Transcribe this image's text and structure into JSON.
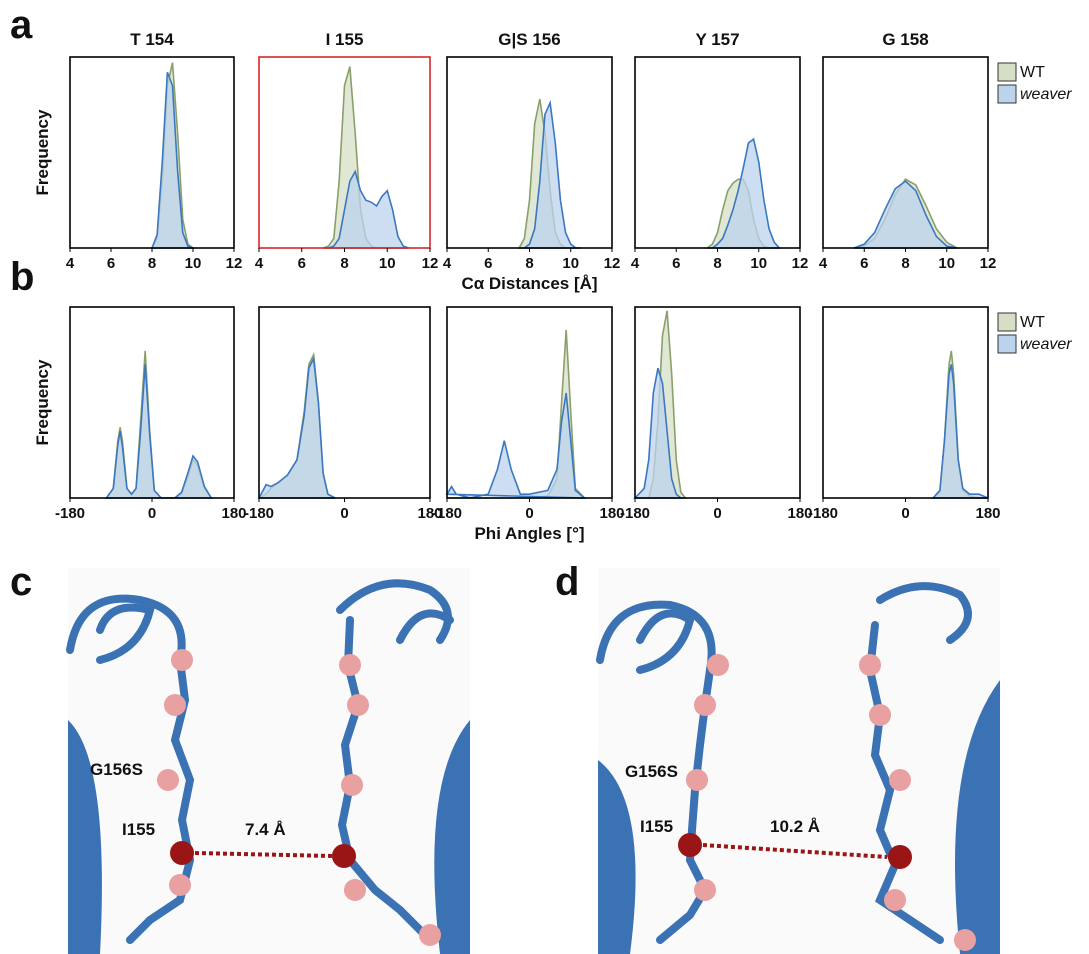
{
  "panel_labels": [
    "a",
    "b",
    "c",
    "d"
  ],
  "structures": [
    {
      "mutant": "G156S",
      "residue": "I155",
      "distance": "7.4 Å"
    },
    {
      "mutant": "G156S",
      "residue": "I155",
      "distance": "10.2 Å"
    }
  ],
  "chart_data": [
    {
      "type": "area",
      "title": "T 154",
      "ylabel": "Frequency",
      "xlim": [
        4,
        12
      ],
      "xticks": [
        4,
        6,
        8,
        10,
        12
      ],
      "ylim": [
        0,
        1
      ],
      "x": [
        8.0,
        8.25,
        8.5,
        8.75,
        9.0,
        9.25,
        9.5,
        9.75,
        10.0
      ],
      "series": [
        {
          "color": "#8aa06a",
          "values": [
            0,
            0.05,
            0.35,
            0.85,
            0.97,
            0.6,
            0.15,
            0.02,
            0
          ]
        },
        {
          "color": "#3b78c0",
          "values": [
            0,
            0.07,
            0.45,
            0.92,
            0.85,
            0.4,
            0.08,
            0.01,
            0
          ]
        }
      ]
    },
    {
      "type": "area",
      "title": "I 155",
      "highlight": "#d62728",
      "xlim": [
        4,
        12
      ],
      "xticks": [
        4,
        6,
        8,
        10,
        12
      ],
      "ylim": [
        0,
        1
      ],
      "x": [
        7,
        7.25,
        7.5,
        7.75,
        8,
        8.25,
        8.5,
        8.75,
        9,
        9.25,
        9.5,
        9.75,
        10,
        10.25,
        10.5,
        10.75,
        11
      ],
      "series": [
        {
          "color": "#8aa06a",
          "values": [
            0,
            0.01,
            0.05,
            0.35,
            0.85,
            0.95,
            0.6,
            0.2,
            0.05,
            0.01,
            0,
            0,
            0,
            0,
            0,
            0,
            0
          ]
        },
        {
          "color": "#3b78c0",
          "values": [
            0,
            0,
            0.01,
            0.05,
            0.2,
            0.35,
            0.4,
            0.3,
            0.25,
            0.24,
            0.22,
            0.27,
            0.3,
            0.2,
            0.06,
            0.01,
            0
          ]
        }
      ]
    },
    {
      "type": "area",
      "title": "G|S 156",
      "xlabel": "Cα Distances [Å]",
      "xlim": [
        4,
        12
      ],
      "xticks": [
        4,
        6,
        8,
        10,
        12
      ],
      "ylim": [
        0,
        1
      ],
      "x": [
        7.5,
        7.75,
        8,
        8.25,
        8.5,
        8.75,
        9,
        9.25,
        9.5,
        9.75,
        10,
        10.25,
        10.5
      ],
      "series": [
        {
          "color": "#8aa06a",
          "values": [
            0,
            0.05,
            0.25,
            0.65,
            0.78,
            0.6,
            0.3,
            0.08,
            0.02,
            0,
            0,
            0,
            0
          ]
        },
        {
          "color": "#3b78c0",
          "values": [
            0,
            0,
            0.02,
            0.1,
            0.35,
            0.7,
            0.76,
            0.55,
            0.25,
            0.08,
            0.02,
            0,
            0
          ]
        }
      ]
    },
    {
      "type": "area",
      "title": "Y 157",
      "xlim": [
        4,
        12
      ],
      "xticks": [
        4,
        6,
        8,
        10,
        12
      ],
      "ylim": [
        0,
        1
      ],
      "x": [
        7.5,
        7.75,
        8,
        8.25,
        8.5,
        8.75,
        9,
        9.25,
        9.5,
        9.75,
        10,
        10.25,
        10.5,
        10.75,
        11
      ],
      "series": [
        {
          "color": "#8aa06a",
          "values": [
            0,
            0.02,
            0.08,
            0.2,
            0.3,
            0.34,
            0.36,
            0.36,
            0.3,
            0.15,
            0.05,
            0.01,
            0,
            0,
            0
          ]
        },
        {
          "color": "#3b78c0",
          "values": [
            0,
            0,
            0.02,
            0.05,
            0.12,
            0.2,
            0.3,
            0.42,
            0.55,
            0.57,
            0.45,
            0.25,
            0.1,
            0.03,
            0
          ]
        }
      ]
    },
    {
      "type": "area",
      "title": "G 158",
      "legend": "right",
      "xlim": [
        4,
        12
      ],
      "xticks": [
        4,
        6,
        8,
        10,
        12
      ],
      "ylim": [
        0,
        1
      ],
      "x": [
        5.5,
        6,
        6.5,
        7,
        7.5,
        8,
        8.5,
        9,
        9.5,
        10,
        10.5
      ],
      "series": [
        {
          "name": "WT",
          "color": "#8aa06a",
          "values": [
            0,
            0.01,
            0.05,
            0.15,
            0.28,
            0.36,
            0.33,
            0.22,
            0.1,
            0.03,
            0
          ]
        },
        {
          "name": "weaver",
          "color": "#3b78c0",
          "values": [
            0,
            0.02,
            0.08,
            0.2,
            0.31,
            0.35,
            0.3,
            0.17,
            0.06,
            0.01,
            0
          ]
        }
      ]
    },
    {
      "type": "area",
      "ylabel": "Frequency",
      "xlim": [
        -180,
        180
      ],
      "xticks": [
        -180,
        0,
        180
      ],
      "ylim": [
        0,
        1
      ],
      "x": [
        -100,
        -85,
        -75,
        -70,
        -65,
        -55,
        -45,
        -35,
        -25,
        -15,
        -5,
        5,
        20,
        50,
        65,
        80,
        90,
        100,
        115,
        130
      ],
      "series": [
        {
          "color": "#8aa06a",
          "values": [
            0,
            0.05,
            0.3,
            0.37,
            0.3,
            0.05,
            0.02,
            0.05,
            0.4,
            0.77,
            0.35,
            0.04,
            0,
            0,
            0.02,
            0.12,
            0.2,
            0.17,
            0.05,
            0
          ]
        },
        {
          "color": "#3b78c0",
          "values": [
            0,
            0.05,
            0.28,
            0.35,
            0.27,
            0.05,
            0.02,
            0.05,
            0.35,
            0.7,
            0.33,
            0.04,
            0,
            0,
            0.03,
            0.14,
            0.22,
            0.19,
            0.06,
            0
          ]
        }
      ]
    },
    {
      "type": "area",
      "xlim": [
        -180,
        180
      ],
      "xticks": [
        -180,
        0,
        180
      ],
      "ylim": [
        0,
        1
      ],
      "x": [
        -180,
        -165,
        -155,
        -140,
        -120,
        -100,
        -85,
        -75,
        -65,
        -55,
        -45,
        -35,
        -20
      ],
      "series": [
        {
          "color": "#8aa06a",
          "values": [
            0,
            0.02,
            0.05,
            0.08,
            0.12,
            0.2,
            0.45,
            0.7,
            0.75,
            0.5,
            0.12,
            0.02,
            0
          ]
        },
        {
          "color": "#3b78c0",
          "values": [
            0,
            0.07,
            0.06,
            0.08,
            0.12,
            0.2,
            0.43,
            0.68,
            0.73,
            0.5,
            0.13,
            0.02,
            0
          ]
        }
      ]
    },
    {
      "type": "area",
      "xlabel": "Phi Angles [°]",
      "xlim": [
        -180,
        180
      ],
      "xticks": [
        -180,
        0,
        180
      ],
      "ylim": [
        0,
        1
      ],
      "x": [
        -180,
        -170,
        -160,
        -130,
        -90,
        -70,
        -55,
        -40,
        -20,
        0,
        40,
        60,
        70,
        80,
        90,
        100,
        120
      ],
      "series": [
        {
          "color": "#8aa06a",
          "values": [
            0,
            0,
            0,
            0,
            0,
            0,
            0,
            0,
            0,
            0,
            0.01,
            0.1,
            0.5,
            0.88,
            0.45,
            0.05,
            0
          ]
        },
        {
          "color": "#3b78c0",
          "values": [
            0.02,
            0.06,
            0.02,
            0,
            0.02,
            0.15,
            0.3,
            0.15,
            0.02,
            0.02,
            0.04,
            0.15,
            0.4,
            0.55,
            0.3,
            0.04,
            0
          ]
        }
      ]
    },
    {
      "type": "area",
      "xlim": [
        -180,
        180
      ],
      "xticks": [
        -180,
        0,
        180
      ],
      "ylim": [
        0,
        1
      ],
      "x": [
        -180,
        -160,
        -150,
        -140,
        -130,
        -120,
        -110,
        -100,
        -90,
        -80,
        -70
      ],
      "series": [
        {
          "color": "#8aa06a",
          "values": [
            0,
            0,
            0,
            0.1,
            0.4,
            0.85,
            0.98,
            0.65,
            0.2,
            0.03,
            0
          ]
        },
        {
          "color": "#3b78c0",
          "values": [
            0,
            0.05,
            0.2,
            0.55,
            0.68,
            0.6,
            0.35,
            0.1,
            0.02,
            0,
            0
          ]
        }
      ]
    },
    {
      "type": "area",
      "legend": "right",
      "xlim": [
        -180,
        180
      ],
      "xticks": [
        -180,
        0,
        180
      ],
      "ylim": [
        0,
        1
      ],
      "x": [
        60,
        75,
        85,
        95,
        100,
        105,
        115,
        125,
        140,
        160,
        180
      ],
      "series": [
        {
          "name": "WT",
          "color": "#8aa06a",
          "values": [
            0,
            0.03,
            0.3,
            0.7,
            0.77,
            0.65,
            0.2,
            0.04,
            0.01,
            0,
            0
          ]
        },
        {
          "name": "weaver",
          "color": "#3b78c0",
          "values": [
            0,
            0.04,
            0.3,
            0.65,
            0.7,
            0.6,
            0.2,
            0.05,
            0.02,
            0.02,
            0
          ]
        }
      ]
    }
  ]
}
